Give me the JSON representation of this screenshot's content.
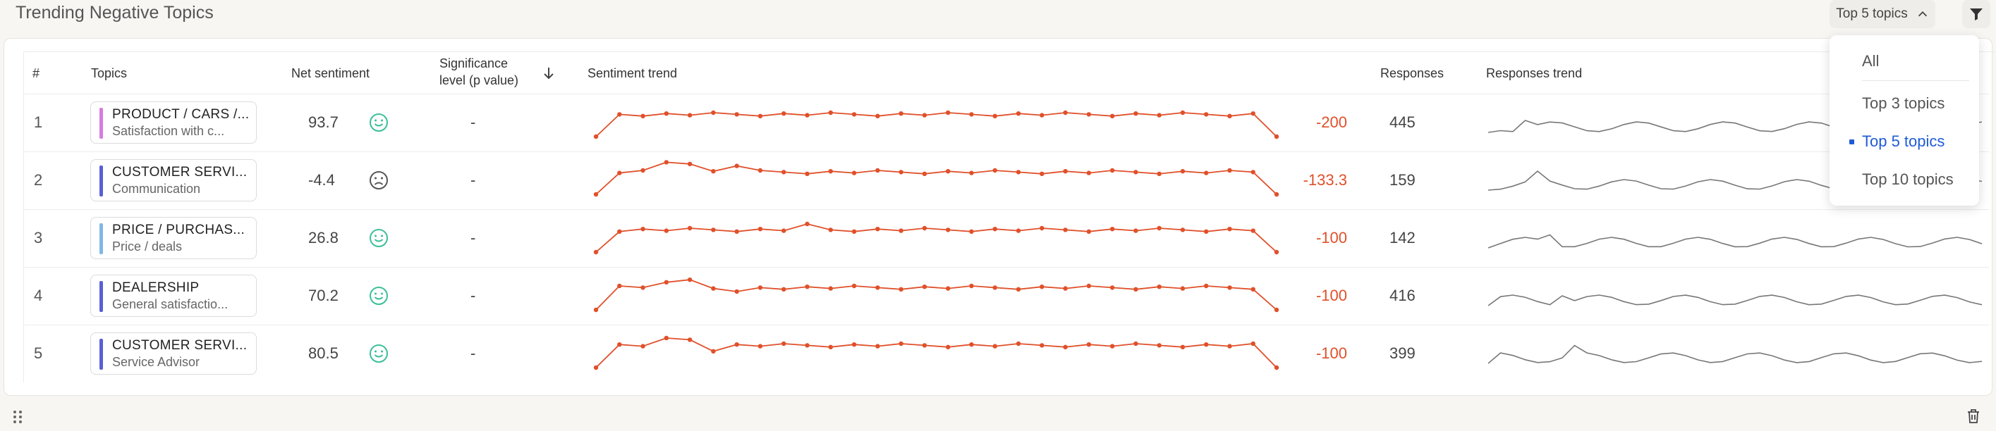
{
  "title": "Trending Negative Topics",
  "topics_button": {
    "label": "Top 5 topics"
  },
  "columns": {
    "num": "#",
    "topics": "Topics",
    "net_sentiment": "Net sentiment",
    "significance_1": "Significance",
    "significance_2": "level (p value)",
    "sentiment_trend": "Sentiment trend",
    "responses": "Responses",
    "responses_trend": "Responses trend"
  },
  "rows": [
    {
      "num": "1",
      "l1": "PRODUCT / CARS /...",
      "l2": "Satisfaction with c...",
      "bar": "#d77ce0",
      "ns": "93.7",
      "face": "happy",
      "sig": "-",
      "delta": "-200",
      "resp": "445"
    },
    {
      "num": "2",
      "l1": "CUSTOMER SERVI...",
      "l2": "Communication",
      "bar": "#5a5fd6",
      "ns": "-4.4",
      "face": "sad",
      "sig": "-",
      "delta": "-133.3",
      "resp": "159"
    },
    {
      "num": "3",
      "l1": "PRICE / PURCHAS...",
      "l2": "Price / deals",
      "bar": "#7fb8e6",
      "ns": "26.8",
      "face": "happy",
      "sig": "-",
      "delta": "-100",
      "resp": "142"
    },
    {
      "num": "4",
      "l1": "DEALERSHIP",
      "l2": "General satisfactio...",
      "bar": "#5a5fd6",
      "ns": "70.2",
      "face": "happy",
      "sig": "-",
      "delta": "-100",
      "resp": "416"
    },
    {
      "num": "5",
      "l1": "CUSTOMER SERVI...",
      "l2": "Service Advisor",
      "bar": "#5a5fd6",
      "ns": "80.5",
      "face": "happy",
      "sig": "-",
      "delta": "-100",
      "resp": "399"
    }
  ],
  "dropdown": {
    "options": [
      "All",
      "Top 3 topics",
      "Top 5 topics",
      "Top 10 topics"
    ],
    "selected": "Top 5 topics"
  },
  "colors": {
    "accent": "#e0502a",
    "selected": "#1f5bd6",
    "happy": "#3cbf9a",
    "sad": "#555555"
  }
}
